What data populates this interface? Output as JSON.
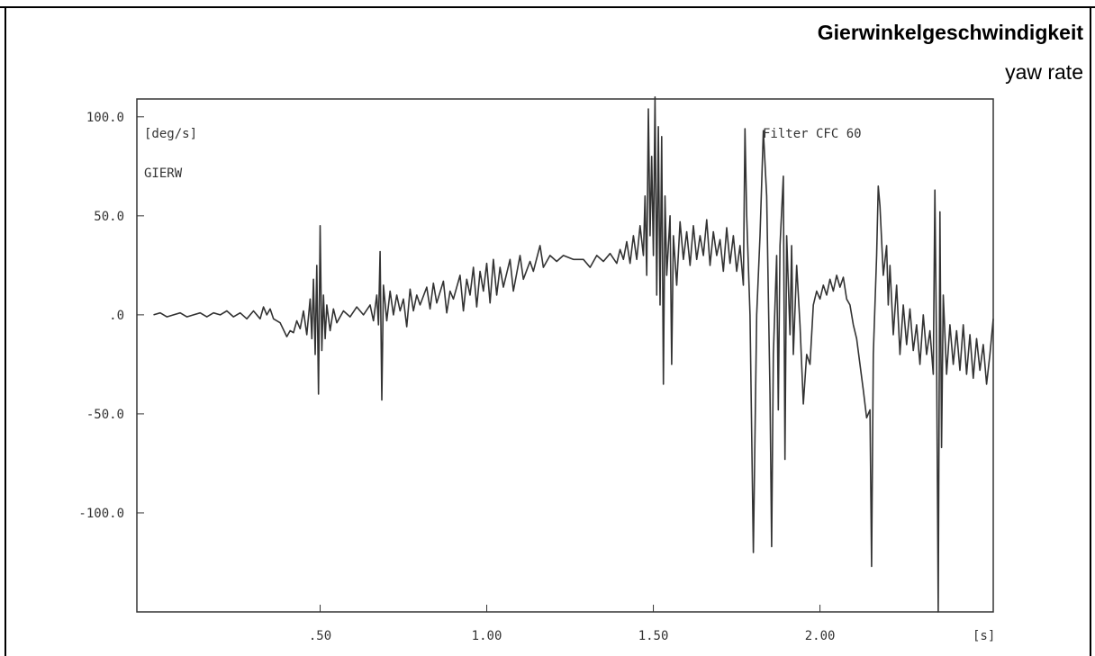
{
  "chart_data": {
    "type": "line",
    "title": "Gierwinkelgeschwindigkeit",
    "subtitle": "yaw rate",
    "y_label": "[deg/s]",
    "signal_label": "GIERW",
    "annotation": "Filter CFC 60",
    "x_label": "[s]",
    "color": "#333333",
    "xlim": [
      -0.05,
      2.52
    ],
    "ylim": [
      -150,
      109
    ],
    "xticks": [
      {
        "value": 0.5,
        "label": ".50"
      },
      {
        "value": 1,
        "label": "1.00"
      },
      {
        "value": 1.5,
        "label": "1.50"
      },
      {
        "value": 2,
        "label": "2.00"
      }
    ],
    "yticks": [
      {
        "value": 100,
        "label": "100.0"
      },
      {
        "value": 50,
        "label": "50.0"
      },
      {
        "value": 0,
        "label": ".0"
      },
      {
        "value": -50,
        "label": "-50.0"
      },
      {
        "value": -100,
        "label": "-100.0"
      }
    ],
    "x": [
      0.0,
      0.02,
      0.04,
      0.06,
      0.08,
      0.1,
      0.12,
      0.14,
      0.16,
      0.18,
      0.2,
      0.22,
      0.24,
      0.26,
      0.28,
      0.3,
      0.32,
      0.33,
      0.34,
      0.35,
      0.36,
      0.38,
      0.4,
      0.41,
      0.42,
      0.43,
      0.44,
      0.45,
      0.46,
      0.47,
      0.475,
      0.48,
      0.485,
      0.49,
      0.495,
      0.5,
      0.505,
      0.51,
      0.515,
      0.52,
      0.53,
      0.54,
      0.55,
      0.57,
      0.59,
      0.61,
      0.63,
      0.65,
      0.66,
      0.67,
      0.675,
      0.68,
      0.685,
      0.69,
      0.7,
      0.71,
      0.72,
      0.73,
      0.74,
      0.75,
      0.76,
      0.77,
      0.78,
      0.79,
      0.8,
      0.82,
      0.83,
      0.84,
      0.85,
      0.87,
      0.88,
      0.89,
      0.9,
      0.92,
      0.93,
      0.94,
      0.95,
      0.96,
      0.97,
      0.98,
      0.99,
      1.0,
      1.01,
      1.02,
      1.03,
      1.04,
      1.05,
      1.07,
      1.08,
      1.1,
      1.11,
      1.13,
      1.14,
      1.16,
      1.17,
      1.19,
      1.21,
      1.23,
      1.26,
      1.29,
      1.31,
      1.33,
      1.35,
      1.37,
      1.39,
      1.4,
      1.41,
      1.42,
      1.43,
      1.44,
      1.45,
      1.46,
      1.47,
      1.475,
      1.48,
      1.485,
      1.49,
      1.495,
      1.5,
      1.505,
      1.51,
      1.515,
      1.52,
      1.525,
      1.53,
      1.535,
      1.54,
      1.55,
      1.555,
      1.56,
      1.57,
      1.58,
      1.59,
      1.6,
      1.61,
      1.62,
      1.63,
      1.64,
      1.65,
      1.66,
      1.67,
      1.68,
      1.69,
      1.7,
      1.71,
      1.72,
      1.73,
      1.74,
      1.75,
      1.76,
      1.77,
      1.775,
      1.78,
      1.79,
      1.8,
      1.81,
      1.82,
      1.83,
      1.84,
      1.85,
      1.855,
      1.86,
      1.87,
      1.875,
      1.88,
      1.89,
      1.895,
      1.9,
      1.91,
      1.915,
      1.92,
      1.93,
      1.94,
      1.95,
      1.96,
      1.97,
      1.98,
      1.99,
      2.0,
      2.01,
      2.02,
      2.03,
      2.04,
      2.05,
      2.06,
      2.07,
      2.08,
      2.09,
      2.1,
      2.11,
      2.12,
      2.13,
      2.14,
      2.15,
      2.155,
      2.16,
      2.17,
      2.175,
      2.18,
      2.19,
      2.2,
      2.205,
      2.21,
      2.22,
      2.23,
      2.24,
      2.25,
      2.26,
      2.27,
      2.28,
      2.29,
      2.3,
      2.31,
      2.32,
      2.33,
      2.34,
      2.345,
      2.35,
      2.355,
      2.36,
      2.365,
      2.37,
      2.38,
      2.39,
      2.4,
      2.41,
      2.42,
      2.43,
      2.44,
      2.45,
      2.46,
      2.47,
      2.48,
      2.49,
      2.5,
      2.51,
      2.52
    ],
    "values": [
      0,
      1,
      -1,
      0,
      1,
      -1,
      0,
      1,
      -1,
      1,
      0,
      2,
      -1,
      1,
      -2,
      2,
      -2,
      4,
      0,
      3,
      -2,
      -4,
      -11,
      -8,
      -9,
      -3,
      -7,
      2,
      -10,
      8,
      -12,
      18,
      -20,
      25,
      -40,
      45,
      -18,
      10,
      -12,
      5,
      -8,
      3,
      -4,
      2,
      -1,
      4,
      0,
      5,
      -3,
      10,
      -5,
      32,
      -43,
      15,
      -3,
      12,
      0,
      10,
      2,
      8,
      -6,
      13,
      2,
      10,
      5,
      14,
      3,
      16,
      6,
      17,
      1,
      12,
      8,
      20,
      2,
      18,
      10,
      24,
      4,
      22,
      12,
      26,
      6,
      28,
      10,
      24,
      14,
      28,
      12,
      30,
      18,
      27,
      22,
      35,
      24,
      30,
      27,
      30,
      28,
      28,
      24,
      30,
      27,
      31,
      26,
      33,
      28,
      37,
      26,
      40,
      28,
      45,
      30,
      60,
      20,
      104,
      40,
      80,
      30,
      110,
      10,
      95,
      5,
      90,
      -35,
      60,
      20,
      50,
      -25,
      40,
      15,
      47,
      28,
      42,
      25,
      45,
      28,
      40,
      30,
      48,
      25,
      42,
      30,
      38,
      22,
      44,
      26,
      40,
      22,
      35,
      15,
      94,
      50,
      0,
      -120,
      0,
      40,
      93,
      60,
      -40,
      -117,
      -20,
      30,
      -48,
      35,
      70,
      -73,
      40,
      -10,
      35,
      -20,
      25,
      -5,
      -45,
      -20,
      -25,
      5,
      12,
      8,
      15,
      10,
      18,
      12,
      20,
      14,
      19,
      8,
      5,
      -5,
      -12,
      -25,
      -38,
      -52,
      -48,
      -127,
      -20,
      30,
      65,
      55,
      20,
      35,
      5,
      25,
      -10,
      15,
      -20,
      5,
      -15,
      3,
      -18,
      -5,
      -25,
      0,
      -20,
      -8,
      -30,
      63,
      -20,
      -150,
      52,
      -67,
      10,
      -30,
      -5,
      -25,
      -8,
      -28,
      -5,
      -30,
      -10,
      -32,
      -12,
      -28,
      -15,
      -35,
      -20,
      -2
    ]
  }
}
